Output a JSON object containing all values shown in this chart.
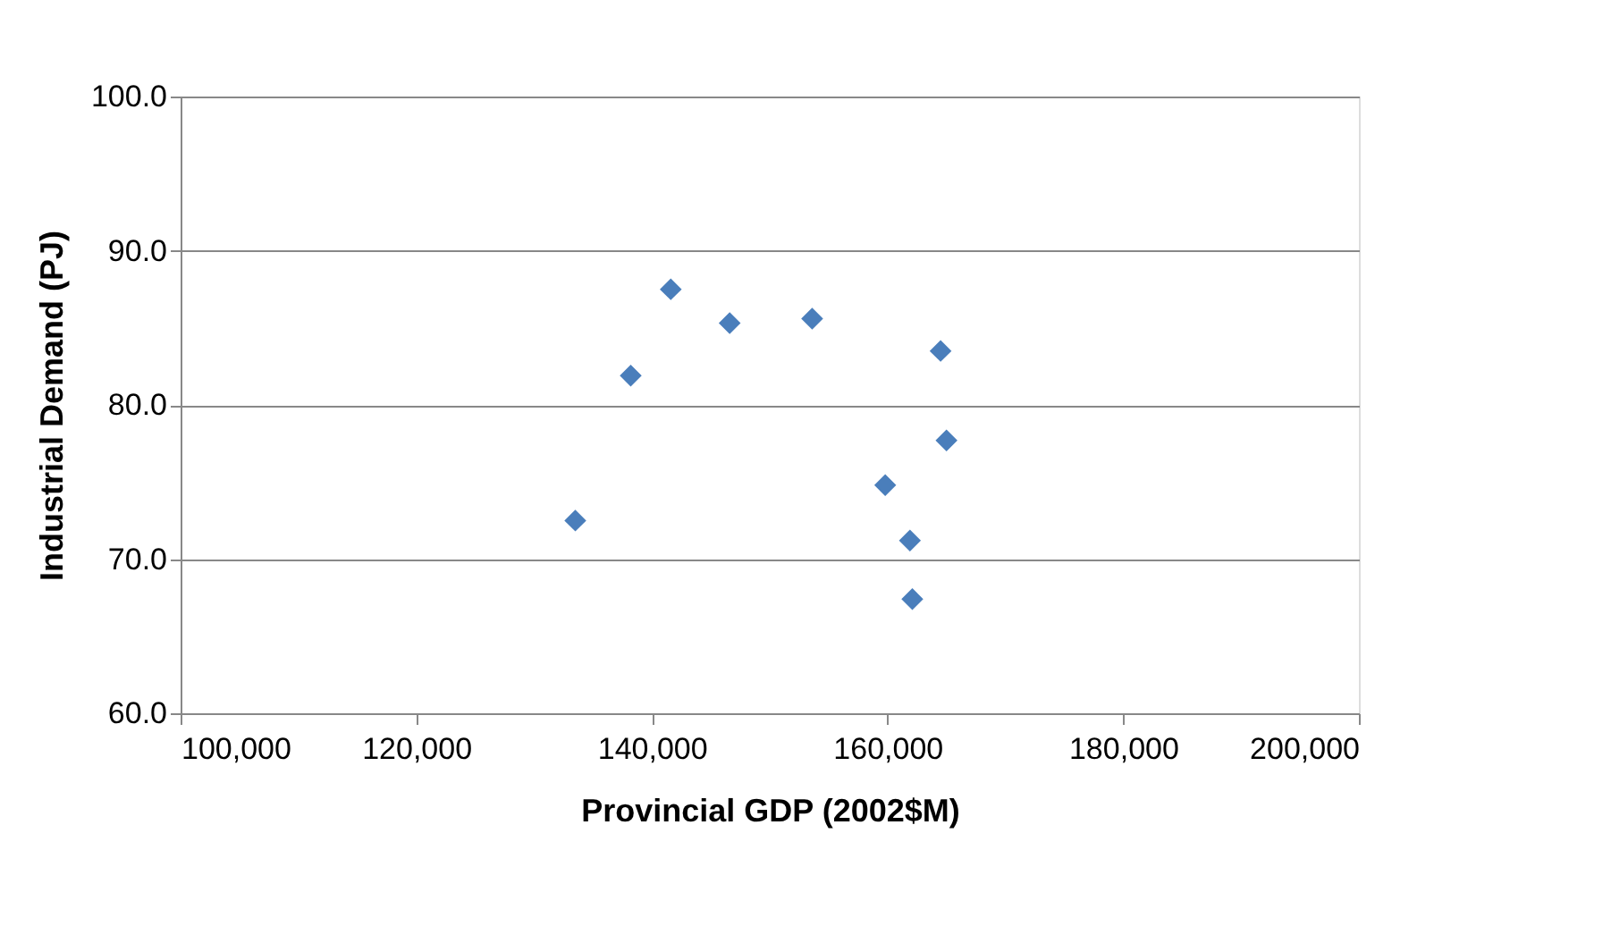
{
  "chart_data": {
    "type": "scatter",
    "xlabel": "Provincial GDP  (2002$M)",
    "ylabel": "Industrial Demand (PJ)",
    "x": [
      133500,
      138200,
      141600,
      146600,
      153600,
      159800,
      161900,
      162100,
      164500,
      165000
    ],
    "series": [
      {
        "color": "#4a7ebb",
        "values": [
          72.5,
          81.9,
          87.5,
          85.3,
          85.6,
          74.8,
          71.2,
          67.4,
          83.5,
          77.7
        ]
      }
    ],
    "xlim": [
      100000,
      200000
    ],
    "xticks": [
      {
        "value": 100000,
        "label": "100,000"
      },
      {
        "value": 120000,
        "label": "120,000"
      },
      {
        "value": 140000,
        "label": "140,000"
      },
      {
        "value": 160000,
        "label": "160,000"
      },
      {
        "value": 180000,
        "label": "180,000"
      },
      {
        "value": 200000,
        "label": "200,000"
      }
    ],
    "ylim": [
      60,
      100
    ],
    "yticks": [
      {
        "value": 60,
        "label": "60.0"
      },
      {
        "value": 70,
        "label": "70.0"
      },
      {
        "value": 80,
        "label": "80.0"
      },
      {
        "value": 90,
        "label": "90.0"
      },
      {
        "value": 100,
        "label": "100.0"
      }
    ],
    "grid": "y",
    "marker": "diamond",
    "legend": false
  }
}
